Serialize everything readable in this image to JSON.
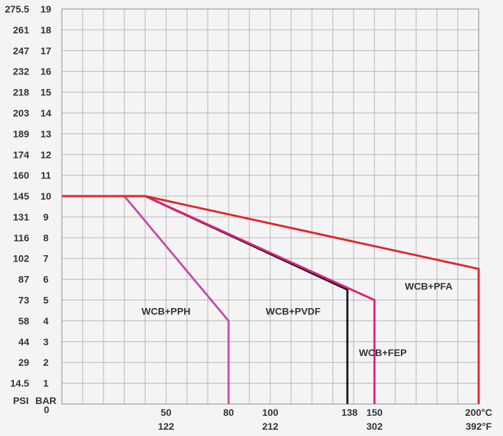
{
  "chart_data": {
    "type": "line",
    "title": "",
    "xlabel": "",
    "ylabel": "",
    "xlim": [
      0,
      200
    ],
    "ylim": [
      0,
      19
    ],
    "grid": true,
    "psi_header": "PSI",
    "bar_header": "BAR",
    "y_ticks_bar": [
      "1",
      "2",
      "3",
      "4",
      "5",
      "6",
      "7",
      "8",
      "9",
      "10",
      "11",
      "12",
      "13",
      "14",
      "15",
      "16",
      "17",
      "18",
      "19"
    ],
    "y_ticks_bar_values": [
      1,
      2,
      3,
      4,
      5,
      6,
      7,
      8,
      9,
      10,
      11,
      12,
      13,
      14,
      15,
      16,
      17,
      18,
      19
    ],
    "y_ticks_psi": [
      "14.5",
      "29",
      "44",
      "58",
      "73",
      "87",
      "102",
      "116",
      "131",
      "145",
      "160",
      "174",
      "189",
      "203",
      "218",
      "232",
      "247",
      "261",
      "275.5"
    ],
    "y_ticks_psi_values": [
      1,
      2,
      3,
      4,
      5,
      6,
      7,
      8,
      9,
      10,
      11,
      12,
      13,
      14,
      15,
      16,
      17,
      18,
      19
    ],
    "x_zero_label": "0",
    "x_ticks_c": [
      {
        "value": 50,
        "label": "50"
      },
      {
        "value": 80,
        "label": "80"
      },
      {
        "value": 100,
        "label": "100"
      },
      {
        "value": 138,
        "label": "138"
      },
      {
        "value": 150,
        "label": "150"
      },
      {
        "value": 200,
        "label": "200°C"
      }
    ],
    "x_ticks_f": [
      {
        "value": 50,
        "label": "122"
      },
      {
        "value": 100,
        "label": "212"
      },
      {
        "value": 150,
        "label": "302"
      },
      {
        "value": 200,
        "label": "392°F"
      }
    ],
    "series": [
      {
        "name": "WCB+PPH",
        "color": "#c54ea8",
        "points": [
          [
            0,
            10
          ],
          [
            30,
            10
          ],
          [
            80,
            4
          ],
          [
            80,
            0
          ]
        ],
        "label_pos": [
          50,
          4.3
        ]
      },
      {
        "name": "WCB+PVDF",
        "color": "#1a1a1a",
        "points": [
          [
            0,
            10
          ],
          [
            40,
            10
          ],
          [
            137,
            5.5
          ],
          [
            137,
            0
          ]
        ],
        "label_pos": [
          111,
          4.3
        ]
      },
      {
        "name": "WCB+FEP",
        "color": "#e0207e",
        "points": [
          [
            0,
            10
          ],
          [
            40,
            10
          ],
          [
            150,
            5
          ],
          [
            150,
            0
          ]
        ],
        "label_pos": [
          154,
          2.3
        ]
      },
      {
        "name": "WCB+PFA",
        "color": "#e0262b",
        "points": [
          [
            0,
            10
          ],
          [
            40,
            10
          ],
          [
            200,
            6.5
          ],
          [
            200,
            0
          ]
        ],
        "label_pos": [
          176,
          5.5
        ]
      }
    ]
  }
}
